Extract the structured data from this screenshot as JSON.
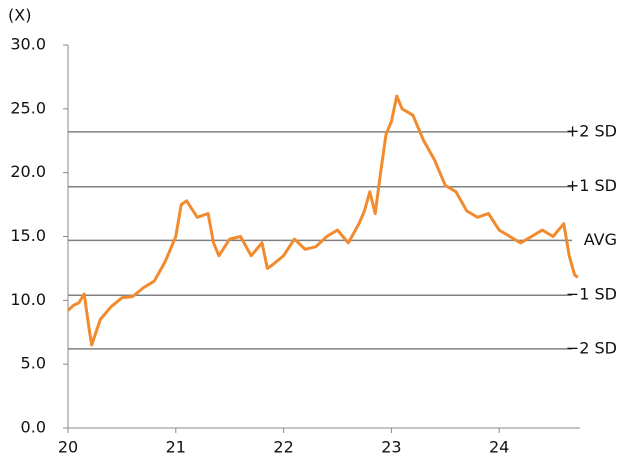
{
  "chart_data": {
    "type": "line",
    "y_axis_label": "(X)",
    "xlim": [
      20,
      24.75
    ],
    "xticks": [
      20,
      21,
      22,
      23,
      24
    ],
    "ylim": [
      0,
      30
    ],
    "yticks": [
      {
        "value": 0,
        "label": "0.0"
      },
      {
        "value": 5,
        "label": "5.0"
      },
      {
        "value": 10,
        "label": "10.0"
      },
      {
        "value": 15,
        "label": "15.0"
      },
      {
        "value": 20,
        "label": "20.0"
      },
      {
        "value": 25,
        "label": "25.0"
      },
      {
        "value": 30,
        "label": "30.0"
      }
    ],
    "reference_lines": [
      {
        "label": "+2 SD",
        "value": 23.2
      },
      {
        "label": "+1 SD",
        "value": 18.9
      },
      {
        "label": "AVG",
        "value": 14.7
      },
      {
        "label": "−1 SD",
        "value": 10.4
      },
      {
        "label": "−2 SD",
        "value": 6.2
      }
    ],
    "reference_color": "#808080",
    "series": [
      {
        "color": "#f28a2e",
        "x": [
          20.0,
          20.05,
          20.1,
          20.15,
          20.2,
          20.22,
          20.3,
          20.4,
          20.5,
          20.6,
          20.7,
          20.8,
          20.9,
          21.0,
          21.05,
          21.1,
          21.2,
          21.3,
          21.35,
          21.4,
          21.5,
          21.6,
          21.7,
          21.8,
          21.85,
          21.9,
          22.0,
          22.1,
          22.2,
          22.3,
          22.4,
          22.5,
          22.6,
          22.7,
          22.75,
          22.8,
          22.85,
          22.9,
          22.95,
          23.0,
          23.05,
          23.1,
          23.2,
          23.3,
          23.4,
          23.5,
          23.6,
          23.7,
          23.8,
          23.9,
          24.0,
          24.1,
          24.2,
          24.3,
          24.4,
          24.5,
          24.6,
          24.65,
          24.7,
          24.73
        ],
        "values": [
          9.2,
          9.6,
          9.8,
          10.5,
          7.5,
          6.5,
          8.5,
          9.5,
          10.2,
          10.3,
          11.0,
          11.5,
          13.0,
          15.0,
          17.5,
          17.8,
          16.5,
          16.8,
          14.5,
          13.5,
          14.8,
          15.0,
          13.5,
          14.5,
          12.5,
          12.8,
          13.5,
          14.8,
          14.0,
          14.2,
          15.0,
          15.5,
          14.5,
          16.0,
          17.0,
          18.5,
          16.8,
          20.0,
          23.0,
          24.0,
          26.0,
          25.0,
          24.5,
          22.5,
          21.0,
          19.0,
          18.5,
          17.0,
          16.5,
          16.8,
          15.5,
          15.0,
          14.5,
          15.0,
          15.5,
          15.0,
          16.0,
          13.5,
          12.0,
          11.8
        ]
      }
    ]
  }
}
